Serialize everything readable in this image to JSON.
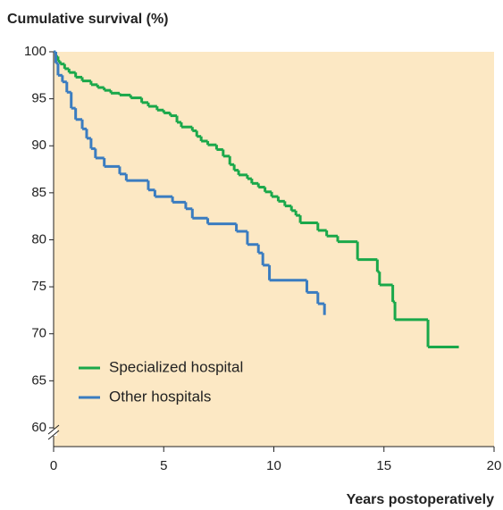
{
  "chart_data": {
    "type": "step",
    "ylabel": "Cumulative survival (%)",
    "xlabel": "Years postoperatively",
    "xlim": [
      0,
      20
    ],
    "xticks": [
      0,
      5,
      10,
      15,
      20
    ],
    "ylim": [
      58,
      100
    ],
    "yticks": [
      60,
      65,
      70,
      75,
      80,
      85,
      90,
      95,
      100
    ],
    "background": "#fce8c4",
    "legend": "lower left",
    "series": [
      {
        "name": "Specialized hospital",
        "color": "#1aa84a",
        "x": [
          0,
          0.1,
          0.2,
          0.3,
          0.5,
          0.7,
          1,
          1.3,
          1.7,
          2,
          2.3,
          2.6,
          3,
          3.5,
          4,
          4.3,
          4.7,
          5,
          5.3,
          5.6,
          5.8,
          6.3,
          6.5,
          6.7,
          7,
          7.4,
          7.7,
          8,
          8.2,
          8.4,
          8.8,
          9,
          9.3,
          9.6,
          9.9,
          10.2,
          10.5,
          10.8,
          11,
          11.2,
          12,
          12.4,
          12.9,
          13.8,
          14.7,
          14.8,
          15.4,
          15.5,
          17,
          18.4
        ],
        "values": [
          100,
          99.5,
          99,
          98.7,
          98.2,
          97.8,
          97.3,
          96.9,
          96.5,
          96.2,
          95.9,
          95.6,
          95.4,
          95.1,
          94.6,
          94.2,
          93.8,
          93.5,
          93.2,
          92.5,
          92,
          91.6,
          91,
          90.5,
          90.1,
          89.6,
          88.9,
          88,
          87.4,
          86.9,
          86.5,
          86,
          85.6,
          85.1,
          84.6,
          84.1,
          83.6,
          83.1,
          82.6,
          81.8,
          81,
          80.4,
          79.8,
          77.9,
          76.6,
          75.2,
          73.4,
          71.5,
          68.6,
          68.6
        ]
      },
      {
        "name": "Other hospitals",
        "color": "#3a7cc0",
        "x": [
          0,
          0.1,
          0.2,
          0.4,
          0.6,
          0.8,
          1,
          1.3,
          1.5,
          1.7,
          1.9,
          2.3,
          3,
          3.3,
          4.3,
          4.6,
          5.4,
          6,
          6.3,
          7,
          8.3,
          8.8,
          9.3,
          9.5,
          9.8,
          11.5,
          12,
          12.3
        ],
        "values": [
          100,
          98.8,
          97.5,
          96.8,
          95.7,
          94,
          92.8,
          91.8,
          90.8,
          89.7,
          88.7,
          87.8,
          87,
          86.3,
          85.3,
          84.6,
          84,
          83.3,
          82.3,
          81.7,
          80.9,
          79.5,
          78.6,
          77.3,
          75.7,
          74.4,
          73.2,
          72
        ]
      }
    ]
  }
}
